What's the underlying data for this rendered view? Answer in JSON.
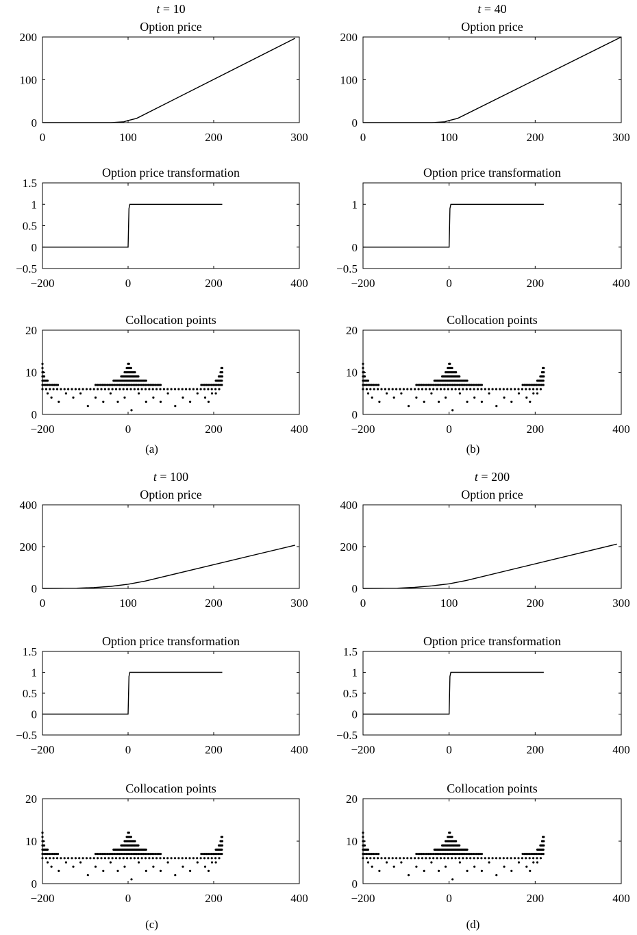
{
  "chart_data": [
    {
      "panel": "a",
      "caption": "(a)",
      "title_time": "t = 10",
      "charts": [
        {
          "type": "line",
          "title": "Option price",
          "xlim": [
            0,
            300
          ],
          "ylim": [
            0,
            200
          ],
          "xticks": [
            0,
            100,
            200,
            300
          ],
          "yticks": [
            0,
            100,
            200
          ],
          "series": [
            {
              "x": [
                0,
                80,
                95,
                100,
                110,
                295
              ],
              "y": [
                0,
                0,
                2,
                5,
                10,
                197
              ]
            }
          ]
        },
        {
          "type": "line",
          "title": "Option price transformation",
          "xlim": [
            -200,
            400
          ],
          "ylim": [
            -0.5,
            1.5
          ],
          "xticks": [
            -200,
            0,
            200,
            400
          ],
          "yticks": [
            -0.5,
            0,
            0.5,
            1,
            1.5
          ],
          "series": [
            {
              "x": [
                -200,
                0,
                2,
                4,
                220
              ],
              "y": [
                0,
                0,
                0.9,
                1,
                1
              ]
            }
          ]
        },
        {
          "type": "scatter",
          "title": "Collocation points",
          "xlim": [
            -200,
            400
          ],
          "ylim": [
            0,
            20
          ],
          "xticks": [
            -200,
            0,
            200,
            400
          ],
          "yticks": [
            0,
            10,
            20
          ],
          "pattern": "standard"
        }
      ]
    },
    {
      "panel": "b",
      "caption": "(b)",
      "title_time": "t = 40",
      "charts": [
        {
          "type": "line",
          "title": "Option price",
          "xlim": [
            0,
            300
          ],
          "ylim": [
            0,
            200
          ],
          "xticks": [
            0,
            100,
            200,
            300
          ],
          "yticks": [
            0,
            100,
            200
          ],
          "series": [
            {
              "x": [
                0,
                80,
                95,
                100,
                110,
                300
              ],
              "y": [
                0,
                0,
                2,
                5,
                10,
                200
              ]
            }
          ]
        },
        {
          "type": "line",
          "title": "Option price transformation",
          "xlim": [
            -200,
            400
          ],
          "ylim": [
            -0.5,
            1.5
          ],
          "xticks": [
            -200,
            0,
            200,
            400
          ],
          "yticks": [
            -0.5,
            0,
            1
          ],
          "series": [
            {
              "x": [
                -200,
                0,
                2,
                4,
                220
              ],
              "y": [
                0,
                0,
                0.9,
                1,
                1
              ]
            }
          ]
        },
        {
          "type": "scatter",
          "title": "Collocation points",
          "xlim": [
            -200,
            400
          ],
          "ylim": [
            0,
            20
          ],
          "xticks": [
            -200,
            0,
            200,
            400
          ],
          "yticks": [
            0,
            10,
            20
          ],
          "pattern": "standard"
        }
      ]
    },
    {
      "panel": "c",
      "caption": "(c)",
      "title_time": "t = 100",
      "charts": [
        {
          "type": "line",
          "title": "Option price",
          "xlim": [
            0,
            300
          ],
          "ylim": [
            0,
            400
          ],
          "xticks": [
            0,
            100,
            200,
            300
          ],
          "yticks": [
            0,
            200,
            400
          ],
          "series": [
            {
              "x": [
                0,
                40,
                60,
                80,
                100,
                120,
                295
              ],
              "y": [
                0,
                1,
                4,
                10,
                20,
                35,
                207
              ]
            }
          ]
        },
        {
          "type": "line",
          "title": "Option price transformation",
          "xlim": [
            -200,
            400
          ],
          "ylim": [
            -0.5,
            1.5
          ],
          "xticks": [
            -200,
            0,
            200,
            400
          ],
          "yticks": [
            -0.5,
            0,
            0.5,
            1,
            1.5
          ],
          "series": [
            {
              "x": [
                -200,
                0,
                2,
                4,
                220
              ],
              "y": [
                0,
                0,
                0.9,
                1,
                1
              ]
            }
          ]
        },
        {
          "type": "scatter",
          "title": "Collocation points",
          "xlim": [
            -200,
            400
          ],
          "ylim": [
            0,
            20
          ],
          "xticks": [
            -200,
            0,
            200,
            400
          ],
          "yticks": [
            0,
            10,
            20
          ],
          "pattern": "standard"
        }
      ]
    },
    {
      "panel": "d",
      "caption": "(d)",
      "title_time": "t = 200",
      "charts": [
        {
          "type": "line",
          "title": "Option price",
          "xlim": [
            0,
            300
          ],
          "ylim": [
            0,
            400
          ],
          "xticks": [
            0,
            100,
            200,
            300
          ],
          "yticks": [
            0,
            200,
            400
          ],
          "series": [
            {
              "x": [
                0,
                40,
                60,
                80,
                100,
                120,
                295
              ],
              "y": [
                0,
                1,
                5,
                12,
                22,
                38,
                212
              ]
            }
          ]
        },
        {
          "type": "line",
          "title": "Option price transformation",
          "xlim": [
            -200,
            400
          ],
          "ylim": [
            -0.5,
            1.5
          ],
          "xticks": [
            -200,
            0,
            200,
            400
          ],
          "yticks": [
            -0.5,
            0,
            0.5,
            1,
            1.5
          ],
          "series": [
            {
              "x": [
                -200,
                0,
                2,
                4,
                220
              ],
              "y": [
                0,
                0,
                0.9,
                1,
                1
              ]
            }
          ]
        },
        {
          "type": "scatter",
          "title": "Collocation points",
          "xlim": [
            -200,
            400
          ],
          "ylim": [
            0,
            20
          ],
          "xticks": [
            -200,
            0,
            200,
            400
          ],
          "yticks": [
            0,
            10,
            20
          ],
          "pattern": "standard"
        }
      ]
    }
  ],
  "collocation_pattern": {
    "base_rows": [
      {
        "y": 1,
        "x": [
          8
        ]
      },
      {
        "y": 2,
        "x": [
          -94,
          110
        ]
      },
      {
        "y": 3,
        "x": [
          -162,
          -58,
          -24,
          42,
          76,
          145,
          188
        ]
      },
      {
        "y": 4,
        "x": [
          -179,
          -128,
          -76,
          -8,
          59,
          128,
          180
        ]
      },
      {
        "y": 5,
        "x": [
          -188,
          -145,
          -111,
          -41,
          25,
          93,
          162,
          196,
          205
        ]
      }
    ],
    "y6": {
      "from": -200,
      "to": 220,
      "step": 8.6
    },
    "y7_segments": [
      [
        -200,
        -162
      ],
      [
        -76,
        76
      ],
      [
        171,
        220
      ]
    ],
    "y8_segments": [
      [
        -200,
        -188
      ],
      [
        -34,
        42
      ],
      [
        205,
        220
      ]
    ],
    "high_rows": [
      {
        "y": 9,
        "segments": [
          [
            -200,
            -196
          ],
          [
            -16,
            25
          ],
          [
            212,
            220
          ]
        ]
      },
      {
        "y": 10,
        "segments": [
          [
            -200,
            -198
          ],
          [
            -8,
            16
          ],
          [
            216,
            220
          ]
        ]
      },
      {
        "y": 11,
        "segments": [
          [
            -200,
            -200
          ],
          [
            -3,
            8
          ],
          [
            218,
            220
          ]
        ]
      },
      {
        "y": 12,
        "segments": [
          [
            -200,
            -200
          ],
          [
            0,
            3
          ]
        ]
      }
    ],
    "dense_step": 4
  }
}
